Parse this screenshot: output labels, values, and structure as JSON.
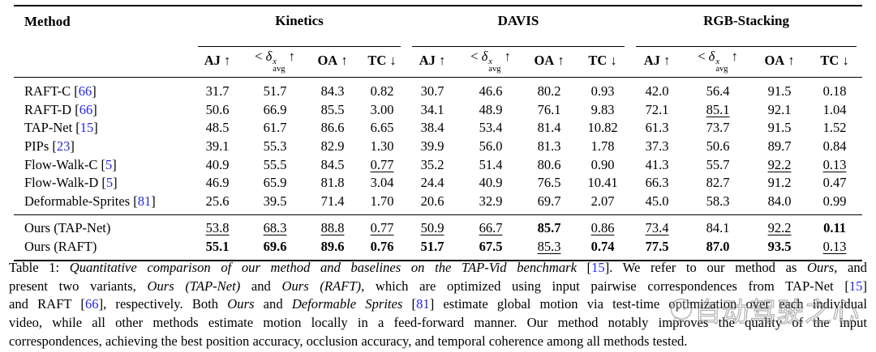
{
  "colors": {
    "citation_blue": "#2328e6",
    "text": "#000000",
    "rule": "#000000"
  },
  "table": {
    "method_header": "Method",
    "groups": [
      {
        "label": "Kinetics"
      },
      {
        "label": "DAVIS"
      },
      {
        "label": "RGB-Stacking"
      }
    ],
    "metric_headers": [
      {
        "label": "AJ",
        "arrow": "↑"
      },
      {
        "label": "delta-avg",
        "prefix": "< ",
        "symbol": "δ",
        "sup": "x",
        "sub": "avg",
        "arrow": "↑"
      },
      {
        "label": "OA",
        "arrow": "↑"
      },
      {
        "label": "TC",
        "arrow": "↓"
      }
    ],
    "baseline_rows": [
      {
        "method": "RAFT-C",
        "cite": "66",
        "cells": [
          "31.7",
          "51.7",
          "84.3",
          "0.82",
          "30.7",
          "46.6",
          "80.2",
          "0.93",
          "42.0",
          "56.4",
          "91.5",
          "0.18"
        ],
        "styles": [
          "",
          "",
          "",
          "",
          "",
          "",
          "",
          "",
          "",
          "",
          "",
          ""
        ]
      },
      {
        "method": "RAFT-D",
        "cite": "66",
        "cells": [
          "50.6",
          "66.9",
          "85.5",
          "3.00",
          "34.1",
          "48.9",
          "76.1",
          "9.83",
          "72.1",
          "85.1",
          "92.1",
          "1.04"
        ],
        "styles": [
          "",
          "",
          "",
          "",
          "",
          "",
          "",
          "",
          "",
          "u",
          "",
          ""
        ]
      },
      {
        "method": "TAP-Net",
        "cite": "15",
        "cells": [
          "48.5",
          "61.7",
          "86.6",
          "6.65",
          "38.4",
          "53.4",
          "81.4",
          "10.82",
          "61.3",
          "73.7",
          "91.5",
          "1.52"
        ],
        "styles": [
          "",
          "",
          "",
          "",
          "",
          "",
          "",
          "",
          "",
          "",
          "",
          ""
        ]
      },
      {
        "method": "PIPs",
        "cite": "23",
        "cells": [
          "39.1",
          "55.3",
          "82.9",
          "1.30",
          "39.9",
          "56.0",
          "81.3",
          "1.78",
          "37.3",
          "50.6",
          "89.7",
          "0.84"
        ],
        "styles": [
          "",
          "",
          "",
          "",
          "",
          "",
          "",
          "",
          "",
          "",
          "",
          ""
        ]
      },
      {
        "method": "Flow-Walk-C",
        "cite": "5",
        "cells": [
          "40.9",
          "55.5",
          "84.5",
          "0.77",
          "35.2",
          "51.4",
          "80.6",
          "0.90",
          "41.3",
          "55.7",
          "92.2",
          "0.13"
        ],
        "styles": [
          "",
          "",
          "",
          "u",
          "",
          "",
          "",
          "",
          "",
          "",
          "u",
          "u"
        ]
      },
      {
        "method": "Flow-Walk-D",
        "cite": "5",
        "cells": [
          "46.9",
          "65.9",
          "81.8",
          "3.04",
          "24.4",
          "40.9",
          "76.5",
          "10.41",
          "66.3",
          "82.7",
          "91.2",
          "0.47"
        ],
        "styles": [
          "",
          "",
          "",
          "",
          "",
          "",
          "",
          "",
          "",
          "",
          "",
          ""
        ]
      },
      {
        "method": "Deformable-Sprites",
        "cite": "81",
        "cells": [
          "25.6",
          "39.5",
          "71.4",
          "1.70",
          "20.6",
          "32.9",
          "69.7",
          "2.07",
          "45.0",
          "58.3",
          "84.0",
          "0.99"
        ],
        "styles": [
          "",
          "",
          "",
          "",
          "",
          "",
          "",
          "",
          "",
          "",
          "",
          ""
        ]
      }
    ],
    "ours_rows": [
      {
        "method": "Ours (TAP-Net)",
        "cite": "",
        "cells": [
          "53.8",
          "68.3",
          "88.8",
          "0.77",
          "50.9",
          "66.7",
          "85.7",
          "0.86",
          "73.4",
          "84.1",
          "92.2",
          "0.11"
        ],
        "styles": [
          "u",
          "u",
          "u",
          "u",
          "u",
          "u",
          "b",
          "u",
          "u",
          "",
          "u",
          "b"
        ]
      },
      {
        "method": "Ours (RAFT)",
        "cite": "",
        "cells": [
          "55.1",
          "69.6",
          "89.6",
          "0.76",
          "51.7",
          "67.5",
          "85.3",
          "0.74",
          "77.5",
          "87.0",
          "93.5",
          "0.13"
        ],
        "styles": [
          "b",
          "b",
          "b",
          "b",
          "b",
          "b",
          "u",
          "b",
          "b",
          "b",
          "b",
          "u"
        ]
      }
    ]
  },
  "caption": {
    "lines": [
      [
        {
          "t": "Table 1: "
        },
        {
          "t": "Quantitative comparison of our method and baselines on the TAP-Vid benchmark",
          "i": true
        },
        {
          "t": " ["
        },
        {
          "t": "15",
          "c": true
        },
        {
          "t": "]. We refer to our method as "
        },
        {
          "t": "Ours",
          "i": true
        },
        {
          "t": ", and"
        }
      ],
      [
        {
          "t": "present two variants, "
        },
        {
          "t": "Ours (TAP-Net)",
          "i": true
        },
        {
          "t": " and "
        },
        {
          "t": "Ours (RAFT)",
          "i": true
        },
        {
          "t": ", which are optimized using input pairwise correspondences from TAP-Net ["
        },
        {
          "t": "15",
          "c": true
        },
        {
          "t": "]"
        }
      ],
      [
        {
          "t": "and RAFT ["
        },
        {
          "t": "66",
          "c": true
        },
        {
          "t": "], respectively. Both "
        },
        {
          "t": "Ours",
          "i": true
        },
        {
          "t": " and "
        },
        {
          "t": "Deformable Sprites",
          "i": true
        },
        {
          "t": " ["
        },
        {
          "t": "81",
          "c": true
        },
        {
          "t": "] estimate global motion via test-time optimization over each individual"
        }
      ],
      [
        {
          "t": "video, while all other methods estimate motion locally in a feed-forward manner. Our method notably improves the quality of the input"
        }
      ],
      [
        {
          "t": "correspondences, achieving the best position accuracy, occlusion accuracy, and temporal coherence among all methods tested."
        }
      ]
    ]
  },
  "watermark": {
    "text": "自动驾驶之心"
  }
}
